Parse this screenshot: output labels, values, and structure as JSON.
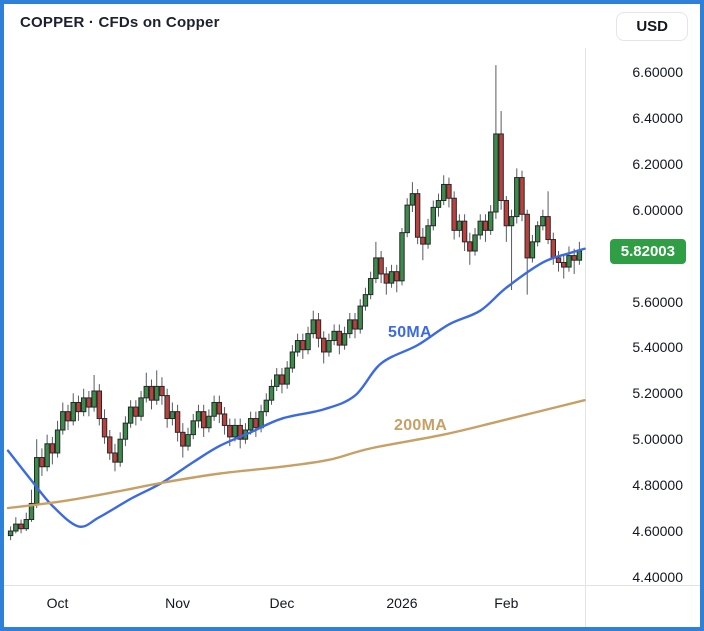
{
  "header": {
    "title": "COPPER · CFDs on Copper",
    "currency_button": "USD"
  },
  "chart_data": {
    "type": "candlestick",
    "symbol": "COPPER",
    "description": "CFDs on Copper",
    "currency": "USD",
    "last_price": 5.82003,
    "last_price_label": "5.82003",
    "price_axis": {
      "ticks": [
        "6.60000",
        "6.40000",
        "6.20000",
        "6.00000",
        "5.60000",
        "5.40000",
        "5.20000",
        "5.00000",
        "4.80000",
        "4.60000",
        "4.40000"
      ],
      "visible_range": [
        4.36,
        6.67
      ]
    },
    "time_axis": {
      "labels": [
        {
          "label": "Oct",
          "index": 9
        },
        {
          "label": "Nov",
          "index": 32
        },
        {
          "label": "Dec",
          "index": 52
        },
        {
          "label": "2026",
          "index": 75
        },
        {
          "label": "Feb",
          "index": 95
        }
      ]
    },
    "colors": {
      "up": "#3c8c49",
      "down": "#bc403c",
      "outline": "#26282b",
      "wick": "#555a61",
      "last_price_bg": "#2f9e45",
      "ma50": "#3b6ae3",
      "ma200": "#c7a065",
      "axis_line": "#e0e3eb",
      "frame": "#2e80d8"
    },
    "candles": [
      [
        4.58,
        4.62,
        4.56,
        4.6
      ],
      [
        4.6,
        4.66,
        4.59,
        4.63
      ],
      [
        4.63,
        4.65,
        4.59,
        4.61
      ],
      [
        4.61,
        4.68,
        4.6,
        4.65
      ],
      [
        4.65,
        4.78,
        4.64,
        4.72
      ],
      [
        4.72,
        5.0,
        4.7,
        4.92
      ],
      [
        4.92,
        4.96,
        4.84,
        4.88
      ],
      [
        4.88,
        5.02,
        4.86,
        4.98
      ],
      [
        4.98,
        5.01,
        4.89,
        4.94
      ],
      [
        4.94,
        5.08,
        4.92,
        5.04
      ],
      [
        5.04,
        5.16,
        5.02,
        5.12
      ],
      [
        5.12,
        5.15,
        5.04,
        5.08
      ],
      [
        5.08,
        5.2,
        5.06,
        5.16
      ],
      [
        5.16,
        5.19,
        5.08,
        5.12
      ],
      [
        5.12,
        5.22,
        5.1,
        5.18
      ],
      [
        5.18,
        5.21,
        5.1,
        5.14
      ],
      [
        5.14,
        5.28,
        5.12,
        5.21
      ],
      [
        5.21,
        5.24,
        5.06,
        5.09
      ],
      [
        5.09,
        5.13,
        4.98,
        5.01
      ],
      [
        5.01,
        5.04,
        4.91,
        4.94
      ],
      [
        4.94,
        4.98,
        4.86,
        4.9
      ],
      [
        4.9,
        5.03,
        4.88,
        5.0
      ],
      [
        5.0,
        5.1,
        4.97,
        5.07
      ],
      [
        5.07,
        5.17,
        5.05,
        5.14
      ],
      [
        5.14,
        5.17,
        5.06,
        5.1
      ],
      [
        5.1,
        5.21,
        5.08,
        5.18
      ],
      [
        5.18,
        5.29,
        5.16,
        5.23
      ],
      [
        5.23,
        5.26,
        5.13,
        5.17
      ],
      [
        5.17,
        5.3,
        5.15,
        5.23
      ],
      [
        5.23,
        5.27,
        5.15,
        5.19
      ],
      [
        5.19,
        5.22,
        5.05,
        5.09
      ],
      [
        5.09,
        5.16,
        5.06,
        5.12
      ],
      [
        5.12,
        5.15,
        4.99,
        5.03
      ],
      [
        5.03,
        5.07,
        4.92,
        4.97
      ],
      [
        4.97,
        5.05,
        4.95,
        5.02
      ],
      [
        5.02,
        5.11,
        5.0,
        5.08
      ],
      [
        5.08,
        5.15,
        5.05,
        5.12
      ],
      [
        5.12,
        5.15,
        5.01,
        5.05
      ],
      [
        5.05,
        5.13,
        5.03,
        5.1
      ],
      [
        5.1,
        5.19,
        5.08,
        5.16
      ],
      [
        5.16,
        5.19,
        5.07,
        5.11
      ],
      [
        5.11,
        5.14,
        5.02,
        5.06
      ],
      [
        5.06,
        5.09,
        4.97,
        5.01
      ],
      [
        5.01,
        5.09,
        4.99,
        5.06
      ],
      [
        5.06,
        5.09,
        4.96,
        5.0
      ],
      [
        5.0,
        5.07,
        4.98,
        5.04
      ],
      [
        5.04,
        5.12,
        5.02,
        5.09
      ],
      [
        5.09,
        5.12,
        5.01,
        5.05
      ],
      [
        5.05,
        5.15,
        5.03,
        5.12
      ],
      [
        5.12,
        5.2,
        5.1,
        5.17
      ],
      [
        5.17,
        5.26,
        5.15,
        5.23
      ],
      [
        5.23,
        5.31,
        5.21,
        5.28
      ],
      [
        5.28,
        5.31,
        5.2,
        5.24
      ],
      [
        5.24,
        5.34,
        5.22,
        5.31
      ],
      [
        5.31,
        5.41,
        5.29,
        5.38
      ],
      [
        5.38,
        5.46,
        5.36,
        5.43
      ],
      [
        5.43,
        5.46,
        5.35,
        5.39
      ],
      [
        5.39,
        5.49,
        5.37,
        5.46
      ],
      [
        5.46,
        5.56,
        5.44,
        5.52
      ],
      [
        5.52,
        5.55,
        5.4,
        5.44
      ],
      [
        5.44,
        5.47,
        5.33,
        5.38
      ],
      [
        5.38,
        5.46,
        5.36,
        5.43
      ],
      [
        5.43,
        5.5,
        5.41,
        5.47
      ],
      [
        5.47,
        5.5,
        5.37,
        5.41
      ],
      [
        5.41,
        5.49,
        5.39,
        5.46
      ],
      [
        5.46,
        5.55,
        5.44,
        5.52
      ],
      [
        5.52,
        5.55,
        5.44,
        5.48
      ],
      [
        5.48,
        5.61,
        5.46,
        5.58
      ],
      [
        5.58,
        5.66,
        5.56,
        5.63
      ],
      [
        5.63,
        5.73,
        5.61,
        5.7
      ],
      [
        5.7,
        5.86,
        5.68,
        5.79
      ],
      [
        5.79,
        5.82,
        5.68,
        5.72
      ],
      [
        5.72,
        5.75,
        5.63,
        5.68
      ],
      [
        5.68,
        5.76,
        5.66,
        5.73
      ],
      [
        5.73,
        5.76,
        5.64,
        5.69
      ],
      [
        5.69,
        5.92,
        5.67,
        5.9
      ],
      [
        5.9,
        6.05,
        5.88,
        6.02
      ],
      [
        6.02,
        6.12,
        5.99,
        6.07
      ],
      [
        6.07,
        6.09,
        5.85,
        5.88
      ],
      [
        5.88,
        5.92,
        5.78,
        5.85
      ],
      [
        5.85,
        5.96,
        5.83,
        5.93
      ],
      [
        5.93,
        6.04,
        5.91,
        6.01
      ],
      [
        6.01,
        6.07,
        5.97,
        6.04
      ],
      [
        6.04,
        6.15,
        6.02,
        6.11
      ],
      [
        6.11,
        6.14,
        6.01,
        6.05
      ],
      [
        6.05,
        6.08,
        5.87,
        5.91
      ],
      [
        5.91,
        5.98,
        5.88,
        5.95
      ],
      [
        5.95,
        5.98,
        5.82,
        5.86
      ],
      [
        5.86,
        5.9,
        5.76,
        5.82
      ],
      [
        5.82,
        5.92,
        5.8,
        5.89
      ],
      [
        5.89,
        5.98,
        5.87,
        5.95
      ],
      [
        5.95,
        5.98,
        5.86,
        5.91
      ],
      [
        5.91,
        6.02,
        5.89,
        5.99
      ],
      [
        5.99,
        6.63,
        5.96,
        6.33
      ],
      [
        6.33,
        6.43,
        6.0,
        6.04
      ],
      [
        6.04,
        6.06,
        5.86,
        5.93
      ],
      [
        5.93,
        6.0,
        5.65,
        5.97
      ],
      [
        5.97,
        6.18,
        5.94,
        6.14
      ],
      [
        6.14,
        6.17,
        5.95,
        5.98
      ],
      [
        5.98,
        6.0,
        5.63,
        5.79
      ],
      [
        5.79,
        5.89,
        5.77,
        5.86
      ],
      [
        5.86,
        5.95,
        5.84,
        5.93
      ],
      [
        5.93,
        6.0,
        5.91,
        5.97
      ],
      [
        5.97,
        6.08,
        5.85,
        5.87
      ],
      [
        5.87,
        5.9,
        5.76,
        5.79
      ],
      [
        5.79,
        5.82,
        5.73,
        5.77
      ],
      [
        5.77,
        5.8,
        5.7,
        5.75
      ],
      [
        5.75,
        5.84,
        5.73,
        5.8
      ],
      [
        5.8,
        5.83,
        5.72,
        5.78
      ],
      [
        5.78,
        5.86,
        5.76,
        5.82
      ]
    ],
    "overlays": [
      {
        "name": "ma-50",
        "label": "50MA",
        "color": "#3b6ae3",
        "points": [
          [
            -0.5,
            4.95
          ],
          [
            4,
            4.82
          ],
          [
            8,
            4.71
          ],
          [
            13,
            4.62
          ],
          [
            17,
            4.66
          ],
          [
            23,
            4.74
          ],
          [
            29,
            4.81
          ],
          [
            35,
            4.9
          ],
          [
            40,
            4.97
          ],
          [
            46,
            5.03
          ],
          [
            52,
            5.09
          ],
          [
            60,
            5.13
          ],
          [
            66,
            5.19
          ],
          [
            71,
            5.33
          ],
          [
            78,
            5.41
          ],
          [
            84,
            5.5
          ],
          [
            90,
            5.56
          ],
          [
            95,
            5.66
          ],
          [
            102,
            5.77
          ],
          [
            107,
            5.81
          ],
          [
            110,
            5.83
          ]
        ]
      },
      {
        "name": "ma-200",
        "label": "200MA",
        "color": "#c7a065",
        "points": [
          [
            -0.5,
            4.7
          ],
          [
            10,
            4.73
          ],
          [
            20,
            4.77
          ],
          [
            29,
            4.81
          ],
          [
            40,
            4.85
          ],
          [
            52,
            4.88
          ],
          [
            61,
            4.91
          ],
          [
            69,
            4.96
          ],
          [
            83,
            5.02
          ],
          [
            94,
            5.08
          ],
          [
            110,
            5.17
          ]
        ]
      }
    ]
  }
}
